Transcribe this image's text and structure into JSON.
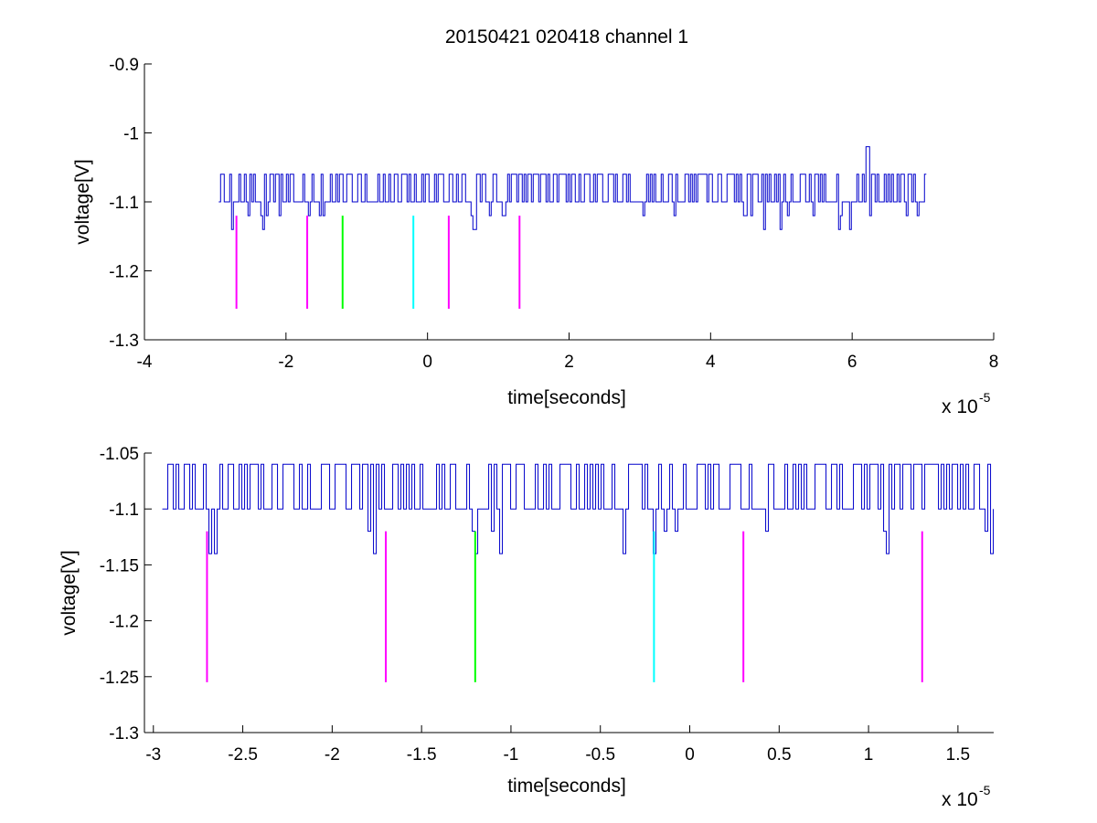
{
  "title": "20150421 020418 channel 1",
  "chart_data": [
    {
      "type": "line",
      "title": "20150421 020418 channel 1",
      "xlabel": "time[seconds]",
      "ylabel": "voltage[V]",
      "x_exponent_base": "x 10",
      "x_exponent_power": "-5",
      "xlim": [
        -4,
        8
      ],
      "ylim": [
        -1.3,
        -0.9
      ],
      "xticks": [
        -4,
        -2,
        0,
        2,
        4,
        6,
        8
      ],
      "xtick_labels": [
        "-4",
        "-2",
        "0",
        "2",
        "4",
        "6",
        "8"
      ],
      "yticks": [
        -0.9,
        -1,
        -1.1,
        -1.2,
        -1.3
      ],
      "ytick_labels": [
        "-0.9",
        "-1",
        "-1.1",
        "-1.2",
        "-1.3"
      ],
      "grid": false,
      "signal": {
        "color": "#0000cc",
        "x_start": -2.95,
        "x_end": 7.05,
        "y_values": [
          -1.1,
          -1.06,
          -1.12,
          -1.14
        ],
        "baseline": -1.1,
        "spike": {
          "x": 6.2,
          "y": -1.02
        }
      },
      "markers": [
        {
          "x": -2.7,
          "y_top": -1.12,
          "y_bottom": -1.255,
          "color": "#ff00ff"
        },
        {
          "x": -1.7,
          "y_top": -1.12,
          "y_bottom": -1.255,
          "color": "#ff00ff"
        },
        {
          "x": -1.2,
          "y_top": -1.12,
          "y_bottom": -1.255,
          "color": "#00ff00"
        },
        {
          "x": -0.2,
          "y_top": -1.12,
          "y_bottom": -1.255,
          "color": "#00ffff"
        },
        {
          "x": 0.3,
          "y_top": -1.12,
          "y_bottom": -1.255,
          "color": "#ff00ff"
        },
        {
          "x": 1.3,
          "y_top": -1.12,
          "y_bottom": -1.255,
          "color": "#ff00ff"
        }
      ]
    },
    {
      "type": "line",
      "title": "",
      "xlabel": "time[seconds]",
      "ylabel": "voltage[V]",
      "x_exponent_base": "x 10",
      "x_exponent_power": "-5",
      "xlim": [
        -3.05,
        1.7
      ],
      "ylim": [
        -1.3,
        -1.05
      ],
      "xticks": [
        -3,
        -2.5,
        -2,
        -1.5,
        -1,
        -0.5,
        0,
        0.5,
        1,
        1.5
      ],
      "xtick_labels": [
        "-3",
        "-2.5",
        "-2",
        "-1.5",
        "-1",
        "-0.5",
        "0",
        "0.5",
        "1",
        "1.5"
      ],
      "yticks": [
        -1.05,
        -1.1,
        -1.15,
        -1.2,
        -1.25,
        -1.3
      ],
      "ytick_labels": [
        "-1.05",
        "-1.1",
        "-1.15",
        "-1.2",
        "-1.25",
        "-1.3"
      ],
      "grid": false,
      "signal": {
        "color": "#0000cc",
        "x_start": -2.95,
        "x_end": 1.7,
        "y_values": [
          -1.1,
          -1.06,
          -1.14
        ],
        "baseline": -1.1
      },
      "markers": [
        {
          "x": -2.7,
          "y_top": -1.12,
          "y_bottom": -1.255,
          "color": "#ff00ff"
        },
        {
          "x": -1.7,
          "y_top": -1.12,
          "y_bottom": -1.255,
          "color": "#ff00ff"
        },
        {
          "x": -1.2,
          "y_top": -1.12,
          "y_bottom": -1.255,
          "color": "#00ff00"
        },
        {
          "x": -0.2,
          "y_top": -1.12,
          "y_bottom": -1.255,
          "color": "#00ffff"
        },
        {
          "x": 0.3,
          "y_top": -1.12,
          "y_bottom": -1.255,
          "color": "#ff00ff"
        },
        {
          "x": 1.3,
          "y_top": -1.12,
          "y_bottom": -1.255,
          "color": "#ff00ff"
        }
      ]
    }
  ]
}
